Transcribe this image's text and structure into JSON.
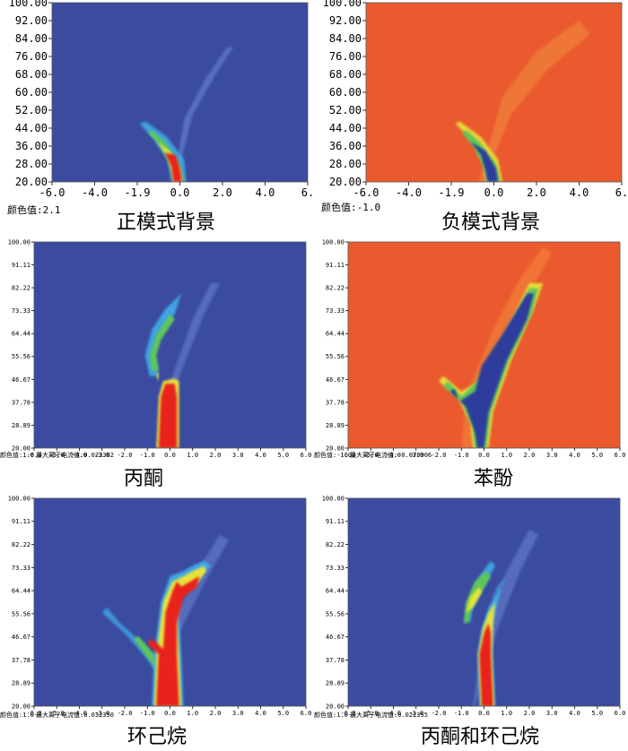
{
  "colors": {
    "blue_bg": "#3B4BA0",
    "orange_bg": "#EA5A2E",
    "red": "#E8231E",
    "yellow": "#E6E23A",
    "green": "#5FC65A",
    "cyan": "#3FA8E6",
    "light_blue": "#6F8CD8",
    "dark_blue": "#2E3C9C"
  },
  "chart_data": [
    {
      "type": "heatmap",
      "title": "正模式背景",
      "mode": "positive",
      "background": "blue",
      "y_ticks": [
        "100.00",
        "92.00",
        "84.00",
        "76.00",
        "68.00",
        "60.00",
        "52.00",
        "44.00",
        "36.00",
        "28.00",
        "20.00"
      ],
      "x_ticks": [
        "-6.0",
        "-4.0",
        "-1.9",
        "0.0",
        "2.0",
        "4.0",
        "6."
      ],
      "ylim": [
        20,
        100
      ],
      "xlim": [
        -6,
        6
      ],
      "color_value_label": "颜色值:2.1",
      "ion_current_label": ""
    },
    {
      "type": "heatmap",
      "title": "负模式背景",
      "mode": "negative",
      "background": "orange",
      "y_ticks": [
        "100.00",
        "92.00",
        "84.00",
        "76.00",
        "68.00",
        "60.00",
        "52.00",
        "44.00",
        "36.00",
        "28.00",
        "20.00"
      ],
      "x_ticks": [
        "-6.0",
        "-4.0",
        "-1.9",
        "0.0",
        "2.0",
        "4.0",
        "6."
      ],
      "ylim": [
        20,
        100
      ],
      "xlim": [
        -6,
        6
      ],
      "color_value_label": "颜色值:-1.0",
      "ion_current_label": ""
    },
    {
      "type": "heatmap",
      "title": "丙酮",
      "mode": "positive",
      "background": "blue",
      "y_ticks": [
        "100.00",
        "91.11",
        "82.22",
        "73.33",
        "64.44",
        "55.56",
        "46.67",
        "37.78",
        "28.89",
        "20.00"
      ],
      "x_ticks": [
        "-6.0",
        "-5.0",
        "-4.0",
        "-3.0",
        "-2.0",
        "-1.0",
        "0.0",
        "1.0",
        "2.0",
        "3.0",
        "4.0",
        "5.0",
        "6.0"
      ],
      "ylim": [
        20,
        100
      ],
      "xlim": [
        -6,
        6
      ],
      "color_value_label": "颜色值:1.0",
      "ion_current_label": "最大离子电流值:0.023362"
    },
    {
      "type": "heatmap",
      "title": "苯酚",
      "mode": "negative",
      "background": "orange",
      "y_ticks": [
        "100.00",
        "91.11",
        "82.22",
        "73.33",
        "64.44",
        "55.56",
        "46.67",
        "37.78",
        "28.89",
        "20.00"
      ],
      "x_ticks": [
        "-6.0",
        "-5.0",
        "-4.0",
        "-3.0",
        "-2.0",
        "-1.0",
        "0.0",
        "1.0",
        "2.0",
        "3.0",
        "4.0",
        "5.0",
        "6.0"
      ],
      "ylim": [
        20,
        100
      ],
      "xlim": [
        -6,
        6
      ],
      "color_value_label": "颜色值:-1.0",
      "ion_current_label": "最大离子电流值:-0.078906"
    },
    {
      "type": "heatmap",
      "title": "环己烷",
      "mode": "positive",
      "background": "blue",
      "y_ticks": [
        "100.00",
        "91.11",
        "82.22",
        "73.33",
        "64.44",
        "55.56",
        "46.67",
        "37.78",
        "28.89",
        "20.00"
      ],
      "x_ticks": [
        "-6.0",
        "-5.0",
        "-4.0",
        "-3.0",
        "-2.0",
        "-1.0",
        "0.0",
        "1.0",
        "2.0",
        "3.0",
        "4.0",
        "5.0",
        "6.0"
      ],
      "ylim": [
        20,
        100
      ],
      "xlim": [
        -6,
        6
      ],
      "color_value_label": "颜色值:1.0",
      "ion_current_label": "最大离子电流值:0.032350"
    },
    {
      "type": "heatmap",
      "title": "丙酮和环己烷",
      "mode": "positive",
      "background": "blue",
      "y_ticks": [
        "100.00",
        "91.11",
        "82.22",
        "73.33",
        "64.44",
        "55.56",
        "46.67",
        "37.78",
        "28.89",
        "20.00"
      ],
      "x_ticks": [
        "-6.0",
        "-5.0",
        "-4.0",
        "-3.0",
        "-2.0",
        "-1.0",
        "0.0",
        "1.0",
        "2.0",
        "3.0",
        "4.0",
        "5.0",
        "6.0"
      ],
      "ylim": [
        20,
        100
      ],
      "xlim": [
        -6,
        6
      ],
      "color_value_label": "颜色值:1.0",
      "ion_current_label": "最大离子电流值:0.022355"
    }
  ]
}
